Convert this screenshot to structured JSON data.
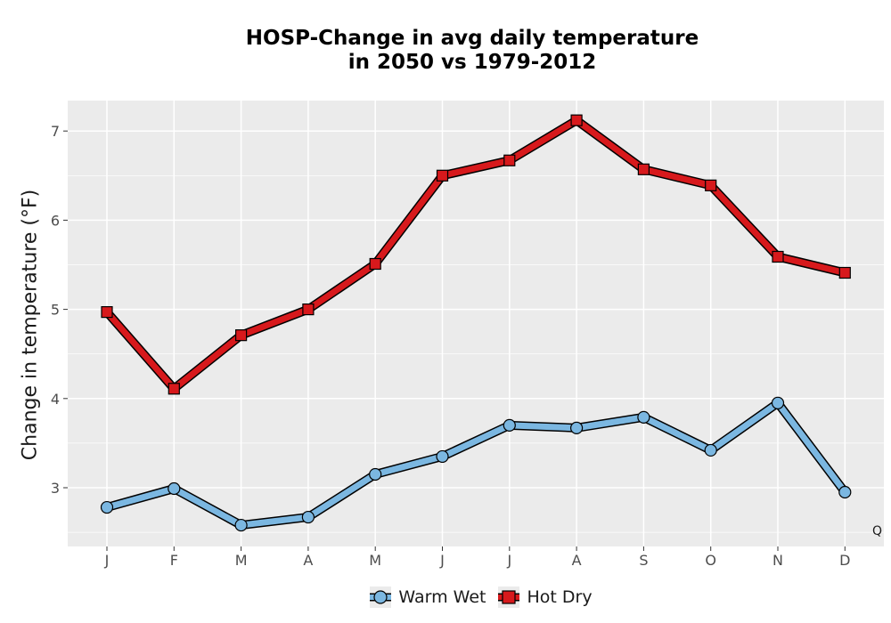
{
  "chart_data": {
    "type": "line",
    "title_lines": [
      "HOSP-Change in avg daily temperature",
      "in 2050 vs 1979-2012"
    ],
    "xlabel": "",
    "ylabel": "Change in temperature (°F)",
    "categories": [
      "J",
      "F",
      "M",
      "A",
      "M",
      "J",
      "J",
      "A",
      "S",
      "O",
      "N",
      "D"
    ],
    "ylim": [
      2.35,
      7.35
    ],
    "yticks": [
      3,
      4,
      5,
      6,
      7
    ],
    "grid": true,
    "legend_position": "bottom",
    "series": [
      {
        "name": "Warm Wet",
        "marker": "circle",
        "color": "#7bb7e1",
        "values": [
          2.78,
          2.99,
          2.58,
          2.67,
          3.15,
          3.35,
          3.7,
          3.67,
          3.79,
          3.42,
          3.95,
          2.95
        ]
      },
      {
        "name": "Hot Dry",
        "marker": "square",
        "color": "#d7191c",
        "values": [
          4.97,
          4.11,
          4.71,
          5.0,
          5.51,
          6.5,
          6.67,
          7.12,
          6.57,
          6.39,
          5.59,
          5.41
        ]
      }
    ],
    "annotation": "Q"
  },
  "colors": {
    "panel": "#ebebeb",
    "grid": "#ffffff",
    "outline": "#000000"
  }
}
